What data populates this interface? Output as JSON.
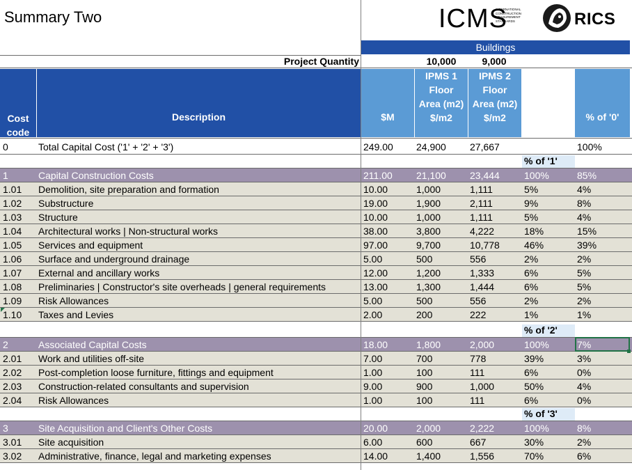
{
  "sheet_title": "Summary Two",
  "logos": {
    "icms": {
      "big": "ICMS",
      "small_lines": [
        "International",
        "Construction",
        "Measurement",
        "Standards"
      ]
    },
    "rics": {
      "text": "RICS"
    }
  },
  "header": {
    "group_label": "Buildings",
    "project_quantity_label": "Project Quantity",
    "quantities": [
      "10,000",
      "9,000"
    ],
    "ipms_cols": [
      [
        "IPMS 1",
        "Floor",
        "Area (m2)"
      ],
      [
        "IPMS 2",
        "Floor",
        "Area (m2)"
      ]
    ],
    "cost_code_label": [
      "Cost",
      "code"
    ],
    "description_label": "Description",
    "m_label": "$M",
    "per_m2_labels": [
      "$/m2",
      "$/m2"
    ],
    "pct0_label": "% of '0'"
  },
  "total_row": {
    "code": "0",
    "desc": "Total Capital Cost ('1' + '2' + '3')",
    "m": "249.00",
    "a": "24,900",
    "b": "27,667",
    "pct": "",
    "pct0": "100%"
  },
  "sections": [
    {
      "pct_label": "% of '1'",
      "head": {
        "code": "1",
        "desc": "Capital Construction Costs",
        "m": "211.00",
        "a": "21,100",
        "b": "23,444",
        "pct": "100%",
        "pct0": "85%"
      },
      "rows": [
        {
          "code": "1.01",
          "desc": "Demolition, site preparation and formation",
          "m": "10.00",
          "a": "1,000",
          "b": "1,111",
          "pct": "5%",
          "pct0": "4%"
        },
        {
          "code": "1.02",
          "desc": "Substructure",
          "m": "19.00",
          "a": "1,900",
          "b": "2,111",
          "pct": "9%",
          "pct0": "8%"
        },
        {
          "code": "1.03",
          "desc": "Structure",
          "m": "10.00",
          "a": "1,000",
          "b": "1,111",
          "pct": "5%",
          "pct0": "4%"
        },
        {
          "code": "1.04",
          "desc": "Architectural works | Non-structural works",
          "m": "38.00",
          "a": "3,800",
          "b": "4,222",
          "pct": "18%",
          "pct0": "15%"
        },
        {
          "code": "1.05",
          "desc": "Services and equipment",
          "m": "97.00",
          "a": "9,700",
          "b": "10,778",
          "pct": "46%",
          "pct0": "39%"
        },
        {
          "code": "1.06",
          "desc": "Surface and underground drainage",
          "m": "5.00",
          "a": "500",
          "b": "556",
          "pct": "2%",
          "pct0": "2%"
        },
        {
          "code": "1.07",
          "desc": "External and ancillary works",
          "m": "12.00",
          "a": "1,200",
          "b": "1,333",
          "pct": "6%",
          "pct0": "5%"
        },
        {
          "code": "1.08",
          "desc": "Preliminaries | Constructor's site overheads | general requirements",
          "m": "13.00",
          "a": "1,300",
          "b": "1,444",
          "pct": "6%",
          "pct0": "5%"
        },
        {
          "code": "1.09",
          "desc": "Risk Allowances",
          "m": "5.00",
          "a": "500",
          "b": "556",
          "pct": "2%",
          "pct0": "2%"
        },
        {
          "code": "1.10",
          "desc": "Taxes and Levies",
          "m": "2.00",
          "a": "200",
          "b": "222",
          "pct": "1%",
          "pct0": "1%"
        }
      ]
    },
    {
      "pct_label": "% of '2'",
      "head": {
        "code": "2",
        "desc": "Associated Capital Costs",
        "m": "18.00",
        "a": "1,800",
        "b": "2,000",
        "pct": "100%",
        "pct0": "7%"
      },
      "rows": [
        {
          "code": "2.01",
          "desc": "Work and utilities off-site",
          "m": "7.00",
          "a": "700",
          "b": "778",
          "pct": "39%",
          "pct0": "3%"
        },
        {
          "code": "2.02",
          "desc": "Post-completion loose furniture, fittings and equipment",
          "m": "1.00",
          "a": "100",
          "b": "111",
          "pct": "6%",
          "pct0": "0%"
        },
        {
          "code": "2.03",
          "desc": "Construction-related consultants and supervision",
          "m": "9.00",
          "a": "900",
          "b": "1,000",
          "pct": "50%",
          "pct0": "4%"
        },
        {
          "code": "2.04",
          "desc": "Risk Allowances",
          "m": "1.00",
          "a": "100",
          "b": "111",
          "pct": "6%",
          "pct0": "0%"
        }
      ]
    },
    {
      "pct_label": "% of '3'",
      "head": {
        "code": "3",
        "desc": "Site Acquisition and Client's Other Costs",
        "m": "20.00",
        "a": "2,000",
        "b": "2,222",
        "pct": "100%",
        "pct0": "8%"
      },
      "rows": [
        {
          "code": "3.01",
          "desc": "Site acquisition",
          "m": "6.00",
          "a": "600",
          "b": "667",
          "pct": "30%",
          "pct0": "2%"
        },
        {
          "code": "3.02",
          "desc": "Administrative, finance, legal and marketing expenses",
          "m": "14.00",
          "a": "1,400",
          "b": "1,556",
          "pct": "70%",
          "pct0": "6%"
        }
      ]
    }
  ]
}
